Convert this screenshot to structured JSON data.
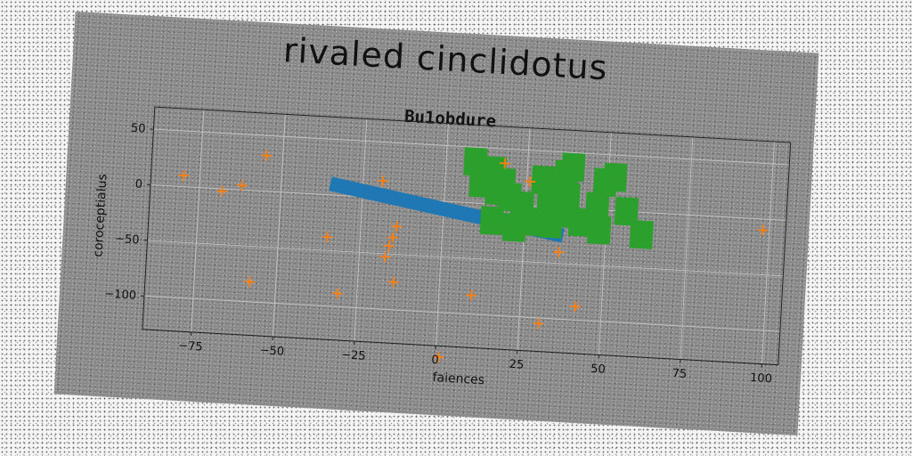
{
  "title": "rivaled cinclidotus",
  "chart_data": {
    "type": "scatter",
    "subtitle": "Bu1obdure",
    "xlabel": "faiences",
    "ylabel": "coroceptialus",
    "xlim": [
      -90,
      105
    ],
    "ylim": [
      -130,
      70
    ],
    "xticks": [
      -75,
      -50,
      -25,
      0,
      25,
      50,
      75,
      100
    ],
    "xtick_labels": [
      "−75",
      "−50",
      "−25",
      "0",
      "25",
      "50",
      "75",
      "100"
    ],
    "yticks": [
      50,
      0,
      -50,
      -100
    ],
    "ytick_labels": [
      "50",
      "0",
      "−50",
      "−100"
    ],
    "grid": true,
    "colors": {
      "band": "#1f77b4",
      "markers": "#ff7f0e",
      "squares": "#2ca02c"
    },
    "band": [
      {
        "x": -35,
        "y": 10
      },
      {
        "x": 37,
        "y": -25
      }
    ],
    "squares": [
      {
        "x": 9,
        "y": 37
      },
      {
        "x": 15,
        "y": 30
      },
      {
        "x": 11,
        "y": 18
      },
      {
        "x": 18,
        "y": 20
      },
      {
        "x": 20,
        "y": 7
      },
      {
        "x": 16,
        "y": 12
      },
      {
        "x": 24,
        "y": 0
      },
      {
        "x": 15,
        "y": -15
      },
      {
        "x": 22,
        "y": -20
      },
      {
        "x": 28,
        "y": -14
      },
      {
        "x": 33,
        "y": -15
      },
      {
        "x": 32,
        "y": 10
      },
      {
        "x": 30,
        "y": 24
      },
      {
        "x": 37,
        "y": 30
      },
      {
        "x": 39,
        "y": 37
      },
      {
        "x": 38,
        "y": 10
      },
      {
        "x": 42,
        "y": -12
      },
      {
        "x": 47,
        "y": 3
      },
      {
        "x": 49,
        "y": 25
      },
      {
        "x": 52,
        "y": 30
      },
      {
        "x": 56,
        "y": 0
      },
      {
        "x": 61,
        "y": -20
      },
      {
        "x": 48,
        "y": -18
      },
      {
        "x": 36,
        "y": -5
      }
    ],
    "square_size": 7,
    "points": [
      {
        "x": -80,
        "y": 10
      },
      {
        "x": -68,
        "y": -2
      },
      {
        "x": -62,
        "y": 4
      },
      {
        "x": -55,
        "y": 32
      },
      {
        "x": -58,
        "y": -82
      },
      {
        "x": -35,
        "y": -38
      },
      {
        "x": -31,
        "y": -88
      },
      {
        "x": -19,
        "y": 15
      },
      {
        "x": -14,
        "y": -25
      },
      {
        "x": -15,
        "y": -35
      },
      {
        "x": -16,
        "y": -43
      },
      {
        "x": -17,
        "y": -53
      },
      {
        "x": -14,
        "y": -75
      },
      {
        "x": 1,
        "y": -140
      },
      {
        "x": 10,
        "y": -83
      },
      {
        "x": 18,
        "y": 37
      },
      {
        "x": 26,
        "y": 22
      },
      {
        "x": 36,
        "y": -40
      },
      {
        "x": 31,
        "y": -105
      },
      {
        "x": 42,
        "y": -88
      },
      {
        "x": 98,
        "y": -10
      }
    ]
  }
}
